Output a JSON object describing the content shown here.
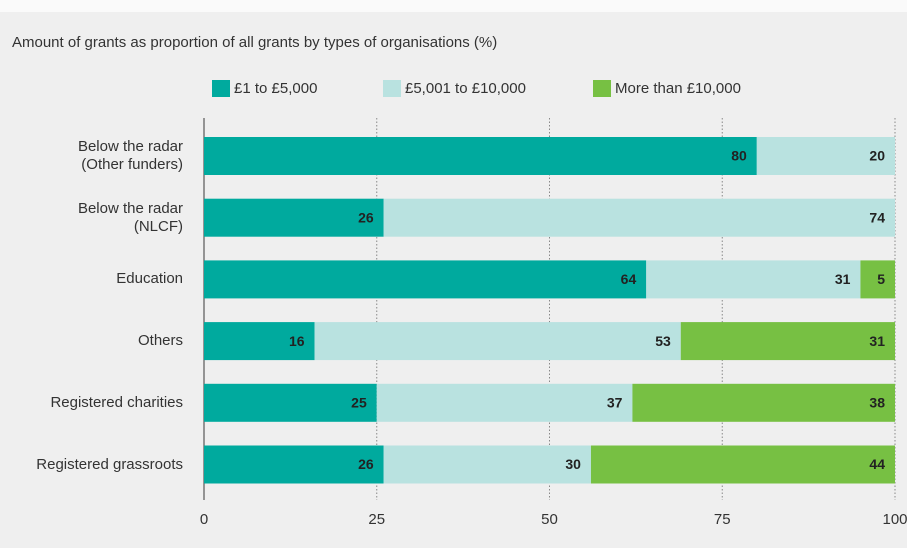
{
  "chart_data": {
    "type": "stacked_bar_horizontal",
    "title": "Amount of grants as proportion of all grants by types of organisations (%)",
    "categories": [
      "Below the radar\n(Other funders)",
      "Below the radar\n(NLCF)",
      "Education",
      "Others",
      "Registered charities",
      "Registered grassroots"
    ],
    "series": [
      {
        "name": "£1 to £5,000",
        "color": "#00aa9e",
        "values": [
          80,
          26,
          64,
          16,
          25,
          26
        ]
      },
      {
        "name": "£5,001 to £10,000",
        "color": "#b9e2e0",
        "values": [
          20,
          74,
          31,
          53,
          37,
          30
        ]
      },
      {
        "name": "More than £10,000",
        "color": "#77c043",
        "values": [
          null,
          null,
          5,
          31,
          38,
          44
        ]
      }
    ],
    "xlim": [
      0,
      100
    ],
    "xticks": [
      0,
      25,
      50,
      75,
      100
    ],
    "grid": true,
    "legend": "top"
  }
}
